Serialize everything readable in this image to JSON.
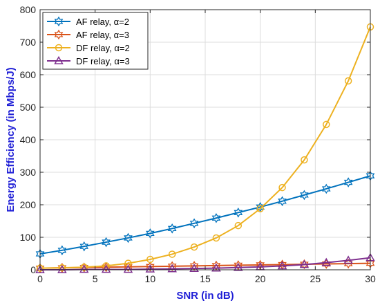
{
  "chart_data": {
    "type": "line",
    "xlabel": "SNR (in dB)",
    "ylabel": "Energy Efficiency (in Mbps/J)",
    "xlim": [
      0,
      30
    ],
    "ylim": [
      0,
      800
    ],
    "xticks": [
      0,
      5,
      10,
      15,
      20,
      25,
      30
    ],
    "yticks": [
      0,
      100,
      200,
      300,
      400,
      500,
      600,
      700,
      800
    ],
    "grid": true,
    "legend_position": "top-left",
    "x": [
      0,
      2,
      4,
      6,
      8,
      10,
      12,
      14,
      16,
      18,
      20,
      22,
      24,
      26,
      28,
      30
    ],
    "series": [
      {
        "name": "AF relay, α=2",
        "color": "#0072BD",
        "marker": "hexagram",
        "values": [
          49,
          60,
          72,
          85,
          98,
          112,
          127,
          143,
          159,
          176,
          193,
          211,
          230,
          249,
          269,
          289
        ]
      },
      {
        "name": "AF relay, α=3",
        "color": "#D95319",
        "marker": "hexagram",
        "values": [
          5,
          6,
          7,
          8,
          9,
          10,
          11,
          12,
          13,
          14,
          15,
          16,
          17,
          18,
          19,
          20
        ]
      },
      {
        "name": "DF relay, α=2",
        "color": "#EDB120",
        "marker": "circle",
        "values": [
          5,
          6,
          8,
          12,
          20,
          32,
          48,
          70,
          98,
          136,
          188,
          253,
          338,
          447,
          581,
          747
        ]
      },
      {
        "name": "DF relay, α=3",
        "color": "#7E2F8E",
        "marker": "triangle",
        "values": [
          0,
          0,
          1,
          1,
          1,
          2,
          3,
          4,
          5,
          7,
          9,
          12,
          16,
          22,
          29,
          37
        ]
      }
    ]
  }
}
